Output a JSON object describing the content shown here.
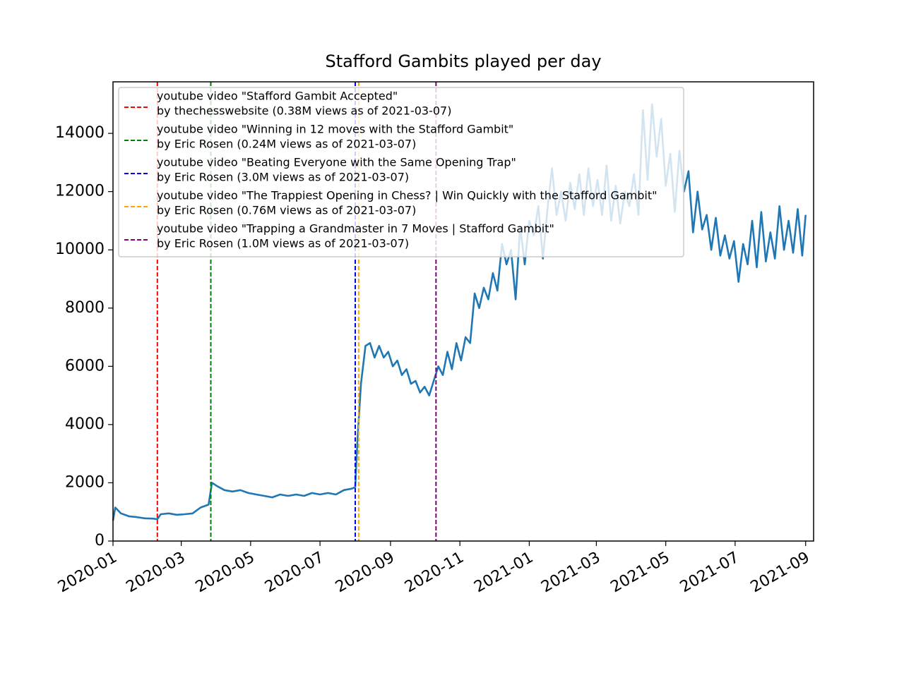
{
  "chart_data": {
    "type": "line",
    "title": "Stafford Gambits played per day",
    "xlim": [
      "2020-01-01",
      "2021-09-08"
    ],
    "ylim": [
      0,
      15770
    ],
    "xticks": [
      {
        "value": "2020-01-01",
        "label": "2020-01"
      },
      {
        "value": "2020-03-01",
        "label": "2020-03"
      },
      {
        "value": "2020-05-01",
        "label": "2020-05"
      },
      {
        "value": "2020-07-01",
        "label": "2020-07"
      },
      {
        "value": "2020-09-01",
        "label": "2020-09"
      },
      {
        "value": "2020-11-01",
        "label": "2020-11"
      },
      {
        "value": "2021-01-01",
        "label": "2021-01"
      },
      {
        "value": "2021-03-01",
        "label": "2021-03"
      },
      {
        "value": "2021-05-01",
        "label": "2021-05"
      },
      {
        "value": "2021-07-01",
        "label": "2021-07"
      },
      {
        "value": "2021-09-01",
        "label": "2021-09"
      }
    ],
    "yticks": [
      0,
      2000,
      4000,
      6000,
      8000,
      10000,
      12000,
      14000
    ],
    "x": [
      "2020-01-01",
      "2020-01-03",
      "2020-01-08",
      "2020-01-15",
      "2020-01-22",
      "2020-01-29",
      "2020-02-05",
      "2020-02-09",
      "2020-02-12",
      "2020-02-19",
      "2020-02-26",
      "2020-03-04",
      "2020-03-11",
      "2020-03-18",
      "2020-03-25",
      "2020-03-28",
      "2020-04-01",
      "2020-04-08",
      "2020-04-15",
      "2020-04-22",
      "2020-04-29",
      "2020-05-06",
      "2020-05-13",
      "2020-05-20",
      "2020-05-27",
      "2020-06-03",
      "2020-06-10",
      "2020-06-17",
      "2020-06-24",
      "2020-07-01",
      "2020-07-08",
      "2020-07-15",
      "2020-07-22",
      "2020-07-29",
      "2020-08-01",
      "2020-08-03",
      "2020-08-06",
      "2020-08-10",
      "2020-08-14",
      "2020-08-18",
      "2020-08-22",
      "2020-08-26",
      "2020-08-30",
      "2020-09-03",
      "2020-09-07",
      "2020-09-11",
      "2020-09-15",
      "2020-09-19",
      "2020-09-23",
      "2020-09-27",
      "2020-10-01",
      "2020-10-05",
      "2020-10-09",
      "2020-10-13",
      "2020-10-17",
      "2020-10-21",
      "2020-10-25",
      "2020-10-29",
      "2020-11-02",
      "2020-11-06",
      "2020-11-10",
      "2020-11-14",
      "2020-11-18",
      "2020-11-22",
      "2020-11-26",
      "2020-11-30",
      "2020-12-04",
      "2020-12-08",
      "2020-12-12",
      "2020-12-16",
      "2020-12-20",
      "2020-12-24",
      "2020-12-28",
      "2021-01-01",
      "2021-01-05",
      "2021-01-09",
      "2021-01-13",
      "2021-01-17",
      "2021-01-21",
      "2021-01-25",
      "2021-01-29",
      "2021-02-02",
      "2021-02-06",
      "2021-02-10",
      "2021-02-14",
      "2021-02-18",
      "2021-02-22",
      "2021-02-26",
      "2021-03-02",
      "2021-03-06",
      "2021-03-10",
      "2021-03-14",
      "2021-03-18",
      "2021-03-22",
      "2021-03-26",
      "2021-03-30",
      "2021-04-03",
      "2021-04-07",
      "2021-04-11",
      "2021-04-15",
      "2021-04-19",
      "2021-04-23",
      "2021-04-27",
      "2021-05-01",
      "2021-05-05",
      "2021-05-09",
      "2021-05-13",
      "2021-05-17",
      "2021-05-21",
      "2021-05-25",
      "2021-05-29",
      "2021-06-02",
      "2021-06-06",
      "2021-06-10",
      "2021-06-14",
      "2021-06-18",
      "2021-06-22",
      "2021-06-26",
      "2021-06-30",
      "2021-07-04",
      "2021-07-08",
      "2021-07-12",
      "2021-07-16",
      "2021-07-20",
      "2021-07-24",
      "2021-07-28",
      "2021-08-01",
      "2021-08-05",
      "2021-08-09",
      "2021-08-13",
      "2021-08-17",
      "2021-08-21",
      "2021-08-25",
      "2021-08-29",
      "2021-09-01"
    ],
    "series": [
      {
        "color": "#1f77b4",
        "values": [
          700,
          1150,
          950,
          850,
          820,
          780,
          770,
          750,
          920,
          950,
          900,
          920,
          950,
          1150,
          1250,
          2000,
          1900,
          1750,
          1700,
          1750,
          1650,
          1600,
          1550,
          1500,
          1600,
          1550,
          1600,
          1550,
          1650,
          1600,
          1650,
          1600,
          1750,
          1800,
          1850,
          3500,
          5400,
          6700,
          6800,
          6300,
          6700,
          6300,
          6500,
          6000,
          6200,
          5700,
          5900,
          5400,
          5500,
          5100,
          5300,
          5000,
          5500,
          6000,
          5700,
          6500,
          5900,
          6800,
          6200,
          7000,
          6800,
          8500,
          8000,
          8700,
          8300,
          9200,
          8600,
          10200,
          9500,
          10000,
          8300,
          10800,
          9500,
          11000,
          10500,
          11500,
          9700,
          11400,
          12800,
          11200,
          12000,
          11000,
          12300,
          11400,
          12600,
          11200,
          12800,
          11500,
          12400,
          11200,
          12900,
          11000,
          12200,
          10900,
          12000,
          11500,
          12600,
          11200,
          14800,
          12400,
          15000,
          13200,
          14500,
          12200,
          13300,
          11300,
          13400,
          12000,
          12700,
          10600,
          12000,
          10700,
          11200,
          10000,
          11100,
          9800,
          10500,
          9700,
          10300,
          8900,
          10200,
          9500,
          11000,
          9400,
          11300,
          9600,
          10600,
          9700,
          11500,
          10000,
          11000,
          9900,
          11400,
          9800,
          11200
        ]
      }
    ],
    "vlines": [
      {
        "name": [
          "youtube video \"Stafford Gambit Accepted\"",
          "by thechesswebsite (0.38M views as of 2021-03-07)"
        ],
        "color": "red",
        "x": "2020-02-09"
      },
      {
        "name": [
          "youtube video \"Winning in 12 moves with the Stafford Gambit\"",
          "by Eric Rosen (0.24M views as of 2021-03-07)"
        ],
        "color": "green",
        "x": "2020-03-27"
      },
      {
        "name": [
          "youtube video \"Beating Everyone with the Same Opening Trap\"",
          "by Eric Rosen (3.0M views as of 2021-03-07)"
        ],
        "color": "blue",
        "x": "2020-08-01"
      },
      {
        "name": [
          "youtube video \"The Trappiest Opening in Chess? | Win Quickly with the Stafford Gambit\"",
          "by Eric Rosen (0.76M views as of 2021-03-07)"
        ],
        "color": "orange",
        "x": "2020-08-04"
      },
      {
        "name": [
          "youtube video \"Trapping a Grandmaster in 7 Moves | Stafford Gambit\"",
          "by Eric Rosen (1.0M views as of 2021-03-07)"
        ],
        "color": "purple",
        "x": "2020-10-11"
      }
    ]
  }
}
